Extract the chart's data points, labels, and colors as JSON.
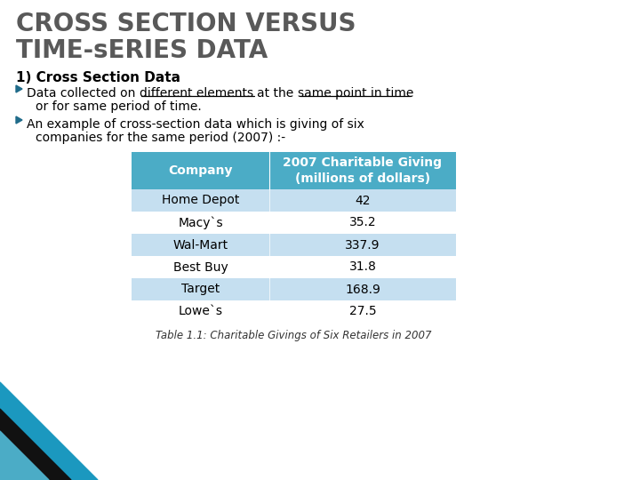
{
  "title_line1": "CROSS SECTION VERSUS",
  "title_line2": "TIME-sERIES DATA",
  "section_heading": "1) Cross Section Data",
  "seg1": "Data collected on ",
  "seg2": "different elements ",
  "seg3": "at the ",
  "seg4": "same point in time",
  "seg5": "or for same period of time.",
  "bullet2_line1": "An example of cross-section data which is giving of six",
  "bullet2_line2": "companies for the same period (2007) :-",
  "table_header": [
    "Company",
    "2007 Charitable Giving\n(millions of dollars)"
  ],
  "table_rows": [
    [
      "Home Depot",
      "42"
    ],
    [
      "Macy`s",
      "35.2"
    ],
    [
      "Wal-Mart",
      "337.9"
    ],
    [
      "Best Buy",
      "31.8"
    ],
    [
      "Target",
      "168.9"
    ],
    [
      "Lowe`s",
      "27.5"
    ]
  ],
  "table_caption": "Table 1.1: Charitable Givings of Six Retailers in 2007",
  "header_bg": "#4BACC6",
  "row_alt_bg": "#C5DFF0",
  "row_bg": "#FFFFFF",
  "title_color": "#595959",
  "text_color": "#000000",
  "bg_color": "#FFFFFF",
  "bullet_color": "#1F6B8A",
  "title_fs": 20,
  "heading_fs": 11,
  "body_fs": 10,
  "table_fs": 10
}
